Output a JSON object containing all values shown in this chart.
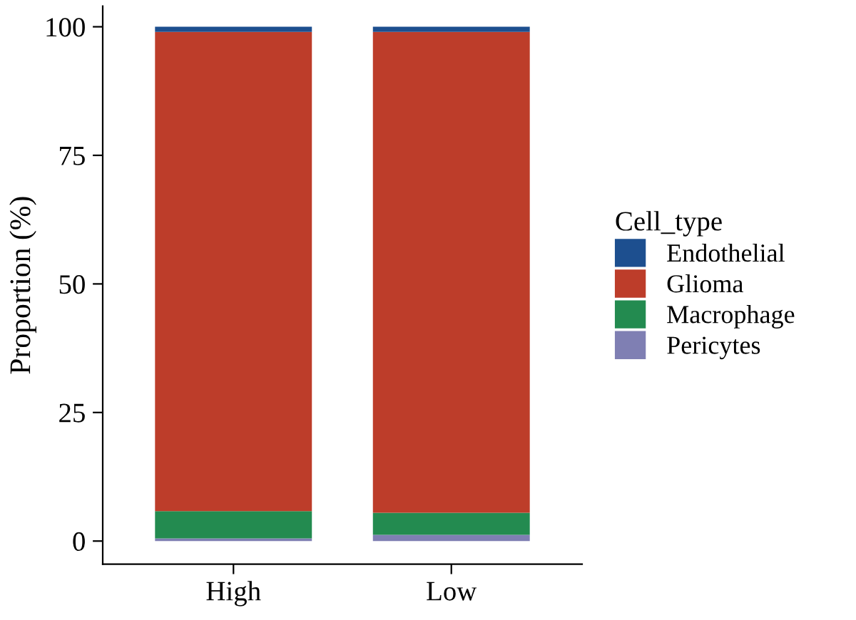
{
  "chart_data": {
    "type": "bar",
    "stacked": true,
    "categories": [
      "High",
      "Low"
    ],
    "ylabel": "Proportion (%)",
    "legend_title": "Cell_type",
    "legend": "right",
    "ylim": [
      -4.5,
      104
    ],
    "yticks": [
      0,
      25,
      50,
      75,
      100
    ],
    "grid": false,
    "series": [
      {
        "name": "Pericytes",
        "color": "#7f7fb3",
        "values": [
          0.5,
          1.2
        ]
      },
      {
        "name": "Macrophage",
        "color": "#238b50",
        "values": [
          5.3,
          4.3
        ]
      },
      {
        "name": "Glioma",
        "color": "#bd3d2a",
        "values": [
          93.2,
          93.5
        ]
      },
      {
        "name": "Endothelial",
        "color": "#1d4f8f",
        "values": [
          1.0,
          1.0
        ]
      }
    ]
  }
}
